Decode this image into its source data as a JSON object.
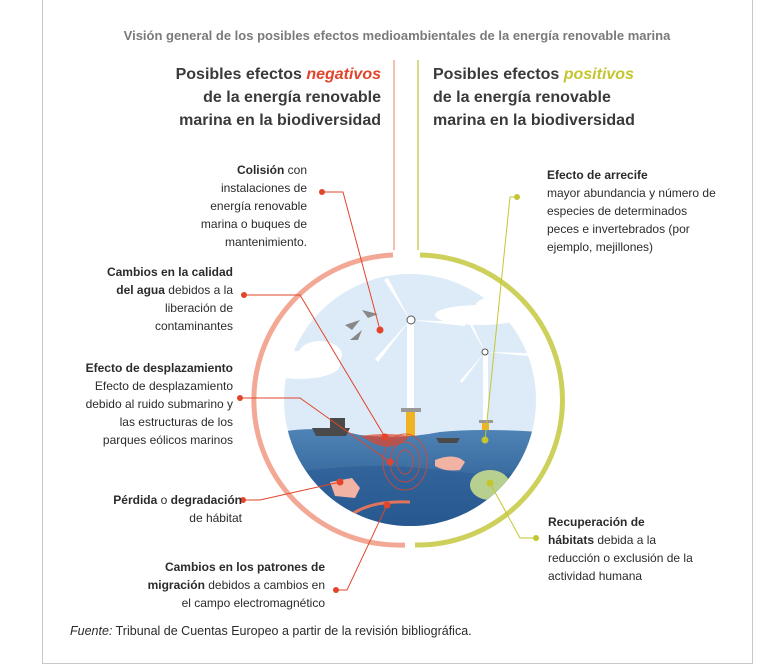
{
  "title": "Visión general de los posibles efectos medioambientales de la energía renovable marina",
  "negative_header": {
    "prefix": "Posibles efectos ",
    "highlight": "negativos",
    "line2": "de la energía renovable",
    "line3": "marina en la biodiversidad"
  },
  "positive_header": {
    "prefix": "Posibles efectos ",
    "highlight": "positivos",
    "line2": "de la energía renovable",
    "line3": "marina en la biodiversidad"
  },
  "negative_effects": [
    {
      "bold": "Colisión",
      "text": " con instalaciones de energía renovable marina o buques de mantenimiento."
    },
    {
      "bold": "Cambios en la calidad del agua",
      "text": " debidos a la liberación de contaminantes"
    },
    {
      "bold": "Efecto de desplazamiento",
      "text": "Efecto de desplazamiento debido al ruido submarino y las estructuras de los parques eólicos marinos"
    },
    {
      "bold": "Pérdida",
      "mid": " o ",
      "bold2": "degradación",
      "text": " de hábitat"
    },
    {
      "bold": "Cambios en los patrones de migración",
      "text": " debidos a cambios en el campo electromagnético"
    }
  ],
  "positive_effects": [
    {
      "bold": "Efecto de arrecife",
      "text": "mayor abundancia y número de especies de determinados peces e invertebrados (por ejemplo, mejillones)"
    },
    {
      "bold": "Recuperación de hábitats",
      "text": " debida a la reducción o exclusión de la actividad humana"
    }
  ],
  "source": {
    "label": "Fuente:",
    "text": " Tribunal de Cuentas Europeo a partir de la revisión bibliográfica."
  },
  "colors": {
    "negative": "#e2452b",
    "positive": "#c3c62f",
    "negative_ring": "#f2a895",
    "positive_ring": "#cdd05a",
    "sky": "#dcebf7",
    "sea": "#3f72a6",
    "tower": "#f0b323"
  }
}
